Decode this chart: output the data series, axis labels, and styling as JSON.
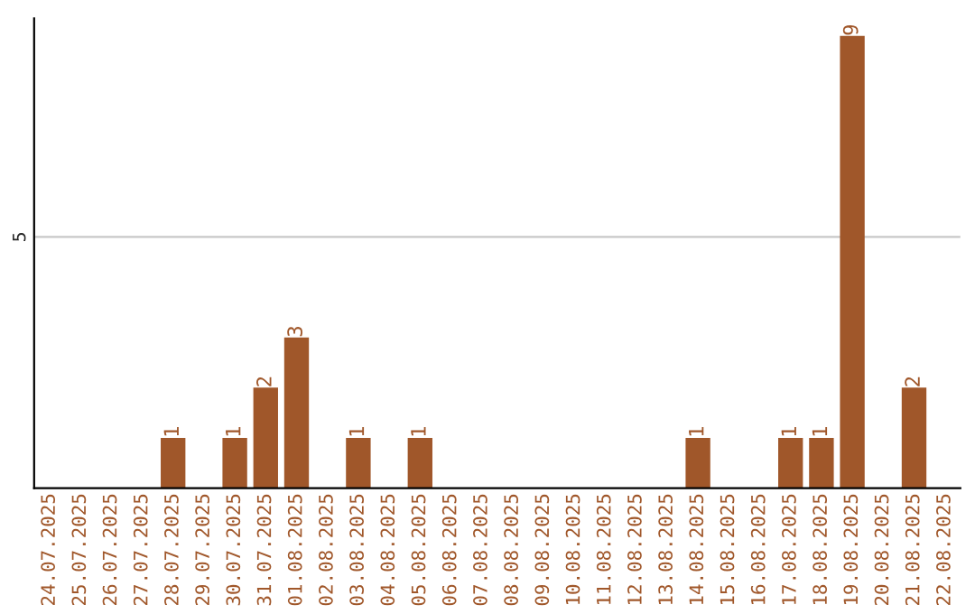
{
  "chart_data": {
    "type": "bar",
    "categories": [
      "24.07.2025",
      "25.07.2025",
      "26.07.2025",
      "27.07.2025",
      "28.07.2025",
      "29.07.2025",
      "30.07.2025",
      "31.07.2025",
      "01.08.2025",
      "02.08.2025",
      "03.08.2025",
      "04.08.2025",
      "05.08.2025",
      "06.08.2025",
      "07.08.2025",
      "08.08.2025",
      "09.08.2025",
      "10.08.2025",
      "11.08.2025",
      "12.08.2025",
      "13.08.2025",
      "14.08.2025",
      "15.08.2025",
      "16.08.2025",
      "17.08.2025",
      "18.08.2025",
      "19.08.2025",
      "20.08.2025",
      "21.08.2025",
      "22.08.2025"
    ],
    "values": [
      0,
      0,
      0,
      0,
      1,
      0,
      1,
      2,
      3,
      0,
      1,
      0,
      1,
      0,
      0,
      0,
      0,
      0,
      0,
      0,
      0,
      1,
      0,
      0,
      1,
      1,
      9,
      0,
      2,
      0
    ],
    "value_labels": [
      null,
      null,
      null,
      null,
      "1",
      null,
      "1",
      "2",
      "3",
      null,
      "1",
      null,
      "1",
      null,
      null,
      null,
      null,
      null,
      null,
      null,
      null,
      "1",
      null,
      null,
      "1",
      "1",
      "9",
      null,
      "2",
      null
    ],
    "color": "#a0572a",
    "ylim": [
      0,
      9.35
    ],
    "yticks": [
      5
    ],
    "grid": "y"
  }
}
